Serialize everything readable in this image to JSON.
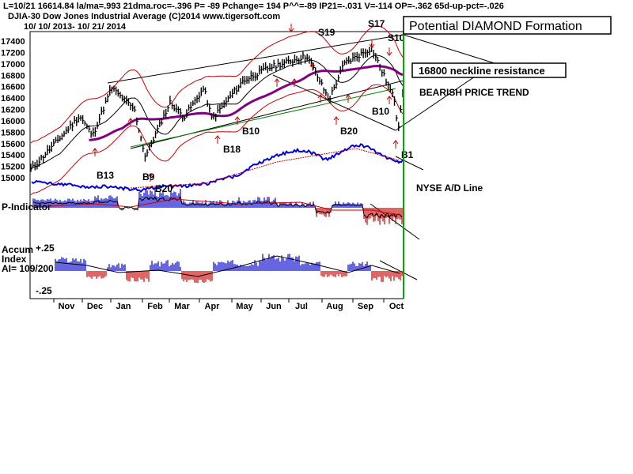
{
  "header": {
    "line1": "L=10/21   16614.84  la/ma=.993 21dma.roc=-.396 P= -89 Pchange=  194 P^^=-89 IP21=-.031 V=-114 OP=-.362 65d-up-pct=-.026",
    "line2": "DJIA-30  Dow Jones Industrial Average   (C)2014 www.tigersoft.com",
    "line3": "10/ 10/ 2013- 10/ 21/ 2014"
  },
  "annotations": {
    "diamond": "Potential DIAMOND Formation",
    "neckline": "16800 neckline resistance",
    "bearish": "BEARISH PRICE TREND",
    "nyse_ad": "NYSE A/D Line"
  },
  "panel_labels": {
    "p_indicator": "P-Indicator",
    "accum_line1": "Accum",
    "accum_line2": "Index",
    "accum_line3": "AI= 109/200",
    "accum_top": "+.25",
    "accum_bottom": "-.25"
  },
  "signals": [
    "B13",
    "B9",
    "B20",
    "B18",
    "B10",
    "S19",
    "B20",
    "S17",
    "S10",
    "B10",
    "B1"
  ],
  "colors": {
    "price_bars": "#000000",
    "bands": "#cc0000",
    "ma_purple": "#800080",
    "ad_line": "#0000dd",
    "positive_hist": "#0000cc",
    "negative_hist": "#cc0000",
    "cursor": "#00aa00",
    "trend_green": "#008800"
  },
  "chart_data": {
    "type": "line",
    "title": "DJIA-30  Dow Jones Industrial Average",
    "ylim": [
      15000,
      17400
    ],
    "y_ticks": [
      17400,
      17200,
      17000,
      16800,
      16600,
      16400,
      16200,
      16000,
      15800,
      15600,
      15400,
      15200,
      15000
    ],
    "x_months": [
      "Nov",
      "Dec",
      "Jan",
      "Feb",
      "Mar",
      "Apr",
      "May",
      "Jun",
      "Jul",
      "Aug",
      "Sep",
      "Oct"
    ],
    "last_close": 16614.84,
    "series": [
      {
        "name": "DJIA-30",
        "x": [
          "2013-10-10",
          "2013-11-01",
          "2013-11-29",
          "2013-12-12",
          "2013-12-31",
          "2014-01-23",
          "2014-02-03",
          "2014-02-28",
          "2014-03-14",
          "2014-04-03",
          "2014-04-11",
          "2014-05-12",
          "2014-06-06",
          "2014-07-03",
          "2014-07-16",
          "2014-08-07",
          "2014-08-22",
          "2014-09-19",
          "2014-10-01",
          "2014-10-13",
          "2014-10-15",
          "2014-10-21"
        ],
        "values": [
          15126,
          15545,
          16086,
          15739,
          16577,
          16197,
          15372,
          16322,
          16065,
          16573,
          16027,
          16695,
          16924,
          17068,
          17139,
          16368,
          17001,
          17280,
          16804,
          16321,
          15800,
          16615
        ]
      }
    ]
  }
}
